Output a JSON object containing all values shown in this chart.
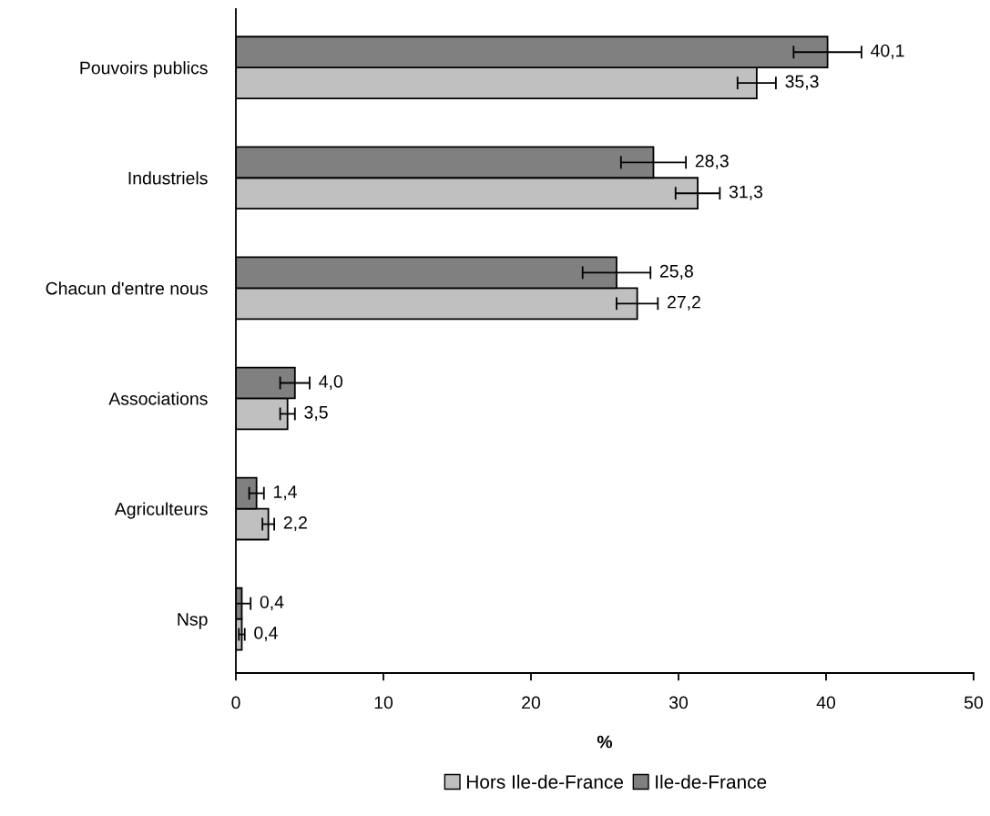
{
  "chart_data": {
    "type": "bar",
    "orientation": "horizontal",
    "xlabel": "%",
    "categories": [
      "Pouvoirs publics",
      "Industriels",
      "Chacun d'entre nous",
      "Associations",
      "Agriculteurs",
      "Nsp"
    ],
    "series": [
      {
        "name": "Hors Ile-de-France",
        "color": "#c0c0c0",
        "values": [
          35.3,
          31.3,
          27.2,
          3.5,
          2.2,
          0.4
        ],
        "errors": [
          1.3,
          1.5,
          1.4,
          0.5,
          0.4,
          0.2
        ],
        "value_labels": [
          "35,3",
          "31,3",
          "27,2",
          "3,5",
          "2,2",
          "0,4"
        ]
      },
      {
        "name": "Ile-de-France",
        "color": "#808080",
        "values": [
          40.1,
          28.3,
          25.8,
          4.0,
          1.4,
          0.4
        ],
        "errors": [
          2.3,
          2.2,
          2.3,
          1.0,
          0.5,
          0.6
        ],
        "value_labels": [
          "40,1",
          "28,3",
          "25,8",
          "4,0",
          "1,4",
          "0,4"
        ]
      }
    ],
    "xlim": [
      0,
      50
    ],
    "xticks": [
      0,
      10,
      20,
      30,
      40,
      50
    ],
    "grid": false,
    "legend": "bottom"
  }
}
